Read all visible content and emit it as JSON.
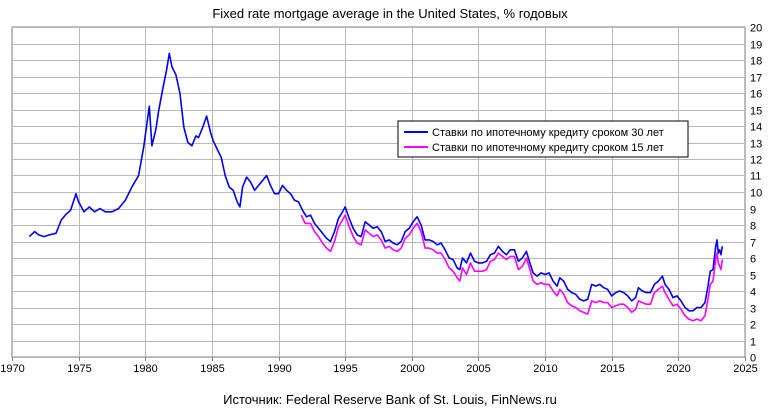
{
  "title": "Fixed rate mortgage average in the United States, % годовых",
  "source": "Источник: Federal Reserve Bank of St. Louis, FinNews.ru",
  "chart_data": {
    "type": "line",
    "title": "Fixed rate mortgage average in the United States, % годовых",
    "xlabel": "",
    "ylabel": "",
    "xlim": [
      1970,
      2025
    ],
    "ylim": [
      0,
      20
    ],
    "xticks": [
      1970,
      1975,
      1980,
      1985,
      1990,
      1995,
      2000,
      2005,
      2010,
      2015,
      2020,
      2025
    ],
    "yticks": [
      0,
      1,
      2,
      3,
      4,
      5,
      6,
      7,
      8,
      9,
      10,
      11,
      12,
      13,
      14,
      15,
      16,
      17,
      18,
      19,
      20
    ],
    "grid": true,
    "legend_position": "right",
    "series": [
      {
        "name": "Ставки по ипотечному кредиту сроком 30 лет",
        "color": "#0000ee",
        "points": [
          [
            1971.3,
            7.3
          ],
          [
            1971.7,
            7.6
          ],
          [
            1972.0,
            7.4
          ],
          [
            1972.4,
            7.3
          ],
          [
            1972.8,
            7.4
          ],
          [
            1973.3,
            7.5
          ],
          [
            1973.7,
            8.3
          ],
          [
            1974.0,
            8.6
          ],
          [
            1974.4,
            8.9
          ],
          [
            1974.8,
            9.9
          ],
          [
            1975.0,
            9.4
          ],
          [
            1975.4,
            8.8
          ],
          [
            1975.8,
            9.1
          ],
          [
            1976.2,
            8.8
          ],
          [
            1976.6,
            9.0
          ],
          [
            1977.0,
            8.8
          ],
          [
            1977.5,
            8.8
          ],
          [
            1978.0,
            9.0
          ],
          [
            1978.5,
            9.5
          ],
          [
            1979.0,
            10.3
          ],
          [
            1979.5,
            11.0
          ],
          [
            1979.9,
            12.8
          ],
          [
            1980.3,
            15.2
          ],
          [
            1980.5,
            12.8
          ],
          [
            1980.8,
            13.8
          ],
          [
            1981.0,
            14.9
          ],
          [
            1981.3,
            16.2
          ],
          [
            1981.6,
            17.4
          ],
          [
            1981.8,
            18.4
          ],
          [
            1982.0,
            17.6
          ],
          [
            1982.3,
            17.1
          ],
          [
            1982.6,
            16.0
          ],
          [
            1982.9,
            13.9
          ],
          [
            1983.2,
            13.0
          ],
          [
            1983.5,
            12.8
          ],
          [
            1983.8,
            13.4
          ],
          [
            1984.0,
            13.3
          ],
          [
            1984.3,
            13.9
          ],
          [
            1984.6,
            14.6
          ],
          [
            1984.9,
            13.6
          ],
          [
            1985.1,
            13.1
          ],
          [
            1985.4,
            12.6
          ],
          [
            1985.7,
            12.1
          ],
          [
            1986.0,
            11.0
          ],
          [
            1986.3,
            10.3
          ],
          [
            1986.6,
            10.1
          ],
          [
            1986.9,
            9.4
          ],
          [
            1987.1,
            9.1
          ],
          [
            1987.3,
            10.3
          ],
          [
            1987.6,
            10.9
          ],
          [
            1987.9,
            10.6
          ],
          [
            1988.2,
            10.1
          ],
          [
            1988.5,
            10.4
          ],
          [
            1988.8,
            10.7
          ],
          [
            1989.1,
            11.0
          ],
          [
            1989.4,
            10.4
          ],
          [
            1989.7,
            9.9
          ],
          [
            1990.0,
            9.9
          ],
          [
            1990.3,
            10.4
          ],
          [
            1990.6,
            10.1
          ],
          [
            1990.9,
            9.9
          ],
          [
            1991.2,
            9.5
          ],
          [
            1991.5,
            9.4
          ],
          [
            1991.8,
            8.9
          ],
          [
            1992.1,
            8.5
          ],
          [
            1992.4,
            8.6
          ],
          [
            1992.7,
            8.1
          ],
          [
            1993.0,
            7.8
          ],
          [
            1993.3,
            7.5
          ],
          [
            1993.6,
            7.2
          ],
          [
            1993.9,
            7.0
          ],
          [
            1994.2,
            7.6
          ],
          [
            1994.5,
            8.4
          ],
          [
            1994.8,
            8.8
          ],
          [
            1995.0,
            9.1
          ],
          [
            1995.3,
            8.4
          ],
          [
            1995.6,
            7.8
          ],
          [
            1995.9,
            7.4
          ],
          [
            1996.2,
            7.3
          ],
          [
            1996.5,
            8.2
          ],
          [
            1996.8,
            8.0
          ],
          [
            1997.1,
            7.8
          ],
          [
            1997.4,
            7.9
          ],
          [
            1997.7,
            7.6
          ],
          [
            1998.0,
            7.0
          ],
          [
            1998.3,
            7.1
          ],
          [
            1998.6,
            6.9
          ],
          [
            1998.9,
            6.8
          ],
          [
            1999.2,
            7.0
          ],
          [
            1999.5,
            7.6
          ],
          [
            1999.8,
            7.8
          ],
          [
            2000.1,
            8.2
          ],
          [
            2000.4,
            8.5
          ],
          [
            2000.7,
            8.0
          ],
          [
            2001.0,
            7.1
          ],
          [
            2001.3,
            7.1
          ],
          [
            2001.6,
            7.0
          ],
          [
            2001.9,
            6.8
          ],
          [
            2002.2,
            6.9
          ],
          [
            2002.5,
            6.5
          ],
          [
            2002.8,
            6.0
          ],
          [
            2003.1,
            5.9
          ],
          [
            2003.4,
            5.4
          ],
          [
            2003.6,
            5.3
          ],
          [
            2003.8,
            6.0
          ],
          [
            2004.1,
            5.7
          ],
          [
            2004.4,
            6.3
          ],
          [
            2004.7,
            5.8
          ],
          [
            2005.0,
            5.7
          ],
          [
            2005.3,
            5.7
          ],
          [
            2005.6,
            5.8
          ],
          [
            2005.9,
            6.2
          ],
          [
            2006.2,
            6.3
          ],
          [
            2006.5,
            6.7
          ],
          [
            2006.8,
            6.4
          ],
          [
            2007.1,
            6.2
          ],
          [
            2007.4,
            6.5
          ],
          [
            2007.7,
            6.5
          ],
          [
            2008.0,
            5.8
          ],
          [
            2008.3,
            6.0
          ],
          [
            2008.6,
            6.4
          ],
          [
            2008.9,
            5.6
          ],
          [
            2009.1,
            5.1
          ],
          [
            2009.4,
            4.9
          ],
          [
            2009.7,
            5.1
          ],
          [
            2010.0,
            5.0
          ],
          [
            2010.3,
            5.1
          ],
          [
            2010.6,
            4.6
          ],
          [
            2010.9,
            4.3
          ],
          [
            2011.1,
            4.8
          ],
          [
            2011.4,
            4.6
          ],
          [
            2011.7,
            4.1
          ],
          [
            2012.0,
            3.9
          ],
          [
            2012.3,
            3.8
          ],
          [
            2012.6,
            3.5
          ],
          [
            2012.9,
            3.4
          ],
          [
            2013.2,
            3.5
          ],
          [
            2013.5,
            4.4
          ],
          [
            2013.8,
            4.3
          ],
          [
            2014.1,
            4.4
          ],
          [
            2014.4,
            4.2
          ],
          [
            2014.7,
            4.1
          ],
          [
            2015.0,
            3.7
          ],
          [
            2015.3,
            3.9
          ],
          [
            2015.6,
            4.0
          ],
          [
            2015.9,
            3.9
          ],
          [
            2016.2,
            3.7
          ],
          [
            2016.5,
            3.4
          ],
          [
            2016.8,
            3.6
          ],
          [
            2017.0,
            4.2
          ],
          [
            2017.3,
            4.0
          ],
          [
            2017.6,
            3.9
          ],
          [
            2017.9,
            3.9
          ],
          [
            2018.2,
            4.4
          ],
          [
            2018.5,
            4.6
          ],
          [
            2018.8,
            4.9
          ],
          [
            2019.0,
            4.4
          ],
          [
            2019.3,
            4.1
          ],
          [
            2019.6,
            3.6
          ],
          [
            2019.9,
            3.7
          ],
          [
            2020.2,
            3.4
          ],
          [
            2020.5,
            3.0
          ],
          [
            2020.8,
            2.8
          ],
          [
            2021.1,
            2.8
          ],
          [
            2021.4,
            3.0
          ],
          [
            2021.7,
            3.0
          ],
          [
            2022.0,
            3.3
          ],
          [
            2022.2,
            4.2
          ],
          [
            2022.4,
            5.2
          ],
          [
            2022.6,
            5.3
          ],
          [
            2022.8,
            6.7
          ],
          [
            2022.9,
            7.1
          ],
          [
            2023.0,
            6.3
          ],
          [
            2023.1,
            6.5
          ],
          [
            2023.2,
            6.2
          ],
          [
            2023.3,
            6.7
          ]
        ]
      },
      {
        "name": "Ставки по ипотечному кредиту сроком 15 лет",
        "color": "#ff00ff",
        "points": [
          [
            1991.7,
            8.6
          ],
          [
            1992.0,
            8.1
          ],
          [
            1992.4,
            8.1
          ],
          [
            1992.7,
            7.6
          ],
          [
            1993.0,
            7.3
          ],
          [
            1993.3,
            6.9
          ],
          [
            1993.6,
            6.6
          ],
          [
            1993.9,
            6.4
          ],
          [
            1994.2,
            7.0
          ],
          [
            1994.5,
            7.9
          ],
          [
            1994.8,
            8.3
          ],
          [
            1995.0,
            8.6
          ],
          [
            1995.3,
            7.9
          ],
          [
            1995.6,
            7.3
          ],
          [
            1995.9,
            6.9
          ],
          [
            1996.2,
            6.8
          ],
          [
            1996.5,
            7.7
          ],
          [
            1996.8,
            7.5
          ],
          [
            1997.1,
            7.3
          ],
          [
            1997.4,
            7.4
          ],
          [
            1997.7,
            7.1
          ],
          [
            1998.0,
            6.6
          ],
          [
            1998.3,
            6.7
          ],
          [
            1998.6,
            6.5
          ],
          [
            1998.9,
            6.4
          ],
          [
            1999.2,
            6.6
          ],
          [
            1999.5,
            7.2
          ],
          [
            1999.8,
            7.4
          ],
          [
            2000.1,
            7.8
          ],
          [
            2000.4,
            8.1
          ],
          [
            2000.7,
            7.6
          ],
          [
            2001.0,
            6.6
          ],
          [
            2001.3,
            6.6
          ],
          [
            2001.6,
            6.5
          ],
          [
            2001.9,
            6.3
          ],
          [
            2002.2,
            6.3
          ],
          [
            2002.5,
            5.9
          ],
          [
            2002.8,
            5.4
          ],
          [
            2003.1,
            5.2
          ],
          [
            2003.4,
            4.8
          ],
          [
            2003.6,
            4.6
          ],
          [
            2003.8,
            5.4
          ],
          [
            2004.1,
            5.0
          ],
          [
            2004.4,
            5.7
          ],
          [
            2004.7,
            5.2
          ],
          [
            2005.0,
            5.2
          ],
          [
            2005.3,
            5.2
          ],
          [
            2005.6,
            5.3
          ],
          [
            2005.9,
            5.8
          ],
          [
            2006.2,
            5.9
          ],
          [
            2006.5,
            6.3
          ],
          [
            2006.8,
            6.1
          ],
          [
            2007.1,
            5.9
          ],
          [
            2007.4,
            6.1
          ],
          [
            2007.7,
            6.1
          ],
          [
            2008.0,
            5.3
          ],
          [
            2008.3,
            5.5
          ],
          [
            2008.6,
            6.0
          ],
          [
            2008.9,
            5.2
          ],
          [
            2009.1,
            4.6
          ],
          [
            2009.4,
            4.4
          ],
          [
            2009.7,
            4.5
          ],
          [
            2010.0,
            4.4
          ],
          [
            2010.3,
            4.4
          ],
          [
            2010.6,
            4.0
          ],
          [
            2010.9,
            3.7
          ],
          [
            2011.1,
            4.1
          ],
          [
            2011.4,
            3.8
          ],
          [
            2011.7,
            3.3
          ],
          [
            2012.0,
            3.1
          ],
          [
            2012.3,
            3.0
          ],
          [
            2012.6,
            2.8
          ],
          [
            2012.9,
            2.7
          ],
          [
            2013.2,
            2.6
          ],
          [
            2013.5,
            3.4
          ],
          [
            2013.8,
            3.3
          ],
          [
            2014.1,
            3.4
          ],
          [
            2014.4,
            3.3
          ],
          [
            2014.7,
            3.3
          ],
          [
            2015.0,
            3.0
          ],
          [
            2015.3,
            3.1
          ],
          [
            2015.6,
            3.2
          ],
          [
            2015.9,
            3.2
          ],
          [
            2016.2,
            3.0
          ],
          [
            2016.5,
            2.7
          ],
          [
            2016.8,
            2.9
          ],
          [
            2017.0,
            3.4
          ],
          [
            2017.3,
            3.3
          ],
          [
            2017.6,
            3.2
          ],
          [
            2017.9,
            3.2
          ],
          [
            2018.2,
            3.9
          ],
          [
            2018.5,
            4.1
          ],
          [
            2018.8,
            4.3
          ],
          [
            2019.0,
            3.9
          ],
          [
            2019.3,
            3.5
          ],
          [
            2019.6,
            3.1
          ],
          [
            2019.9,
            3.2
          ],
          [
            2020.2,
            2.9
          ],
          [
            2020.5,
            2.5
          ],
          [
            2020.8,
            2.3
          ],
          [
            2021.1,
            2.2
          ],
          [
            2021.4,
            2.3
          ],
          [
            2021.7,
            2.2
          ],
          [
            2022.0,
            2.5
          ],
          [
            2022.2,
            3.4
          ],
          [
            2022.4,
            4.4
          ],
          [
            2022.6,
            4.6
          ],
          [
            2022.8,
            5.9
          ],
          [
            2022.9,
            6.3
          ],
          [
            2023.0,
            5.7
          ],
          [
            2023.1,
            5.5
          ],
          [
            2023.2,
            5.3
          ],
          [
            2023.3,
            5.9
          ]
        ]
      }
    ]
  }
}
